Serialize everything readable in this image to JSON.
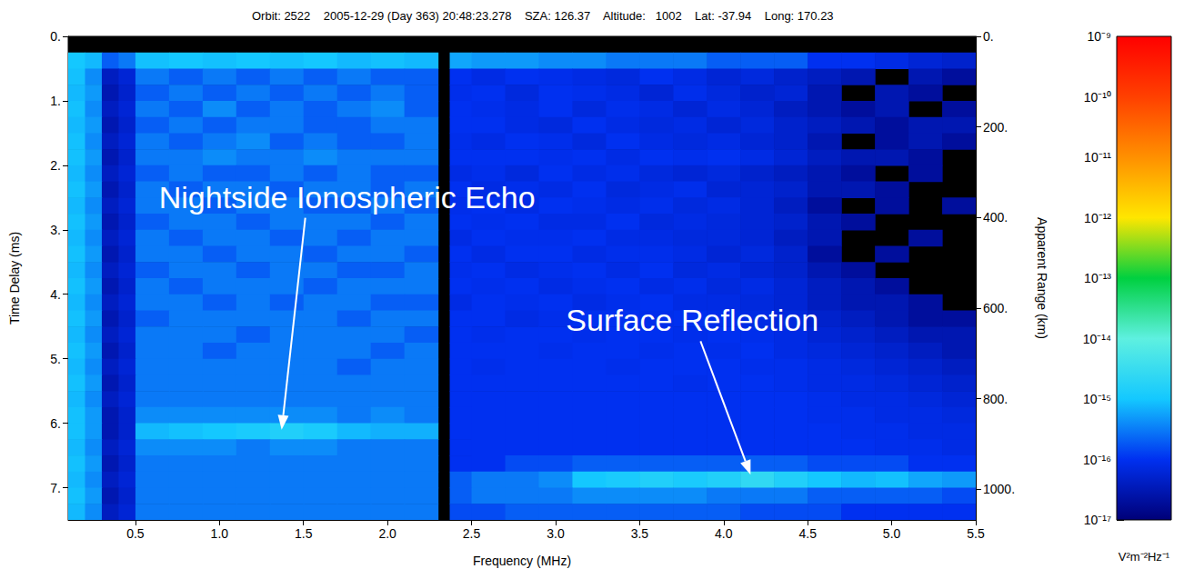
{
  "chart_data": {
    "type": "heatmap",
    "title": "Orbit: 2522    2005-12-29 (Day 363) 20:48:23.278    SZA: 126.37    Altitude:   1002    Lat: -37.94    Long: 170.23",
    "xlabel": "Frequency (MHz)",
    "ylabel": "Time Delay (ms)",
    "y2label": "Apparent Range (km)",
    "xlim": [
      0.1,
      5.5
    ],
    "xticks": [
      0.5,
      {
        "value": 1,
        "label": "1.0"
      },
      1.5,
      {
        "value": 2,
        "label": "2.0"
      },
      2.5,
      {
        "value": 3,
        "label": "3.0"
      },
      3.5,
      {
        "value": 4,
        "label": "4.0"
      },
      4.5,
      {
        "value": 5,
        "label": "5.0"
      },
      5.5
    ],
    "ylim": [
      7.5,
      0
    ],
    "yticks": [
      {
        "value": 0,
        "label": "0."
      },
      {
        "value": 1,
        "label": "1."
      },
      {
        "value": 2,
        "label": "2."
      },
      {
        "value": 3,
        "label": "3."
      },
      {
        "value": 4,
        "label": "4."
      },
      {
        "value": 5,
        "label": "5."
      },
      {
        "value": 6,
        "label": "6."
      },
      {
        "value": 7,
        "label": "7."
      }
    ],
    "y2lim": [
      1068,
      0
    ],
    "y2ticks": [
      {
        "value": 0,
        "label": "0."
      },
      {
        "value": 200,
        "label": "200."
      },
      {
        "value": 400,
        "label": "400."
      },
      {
        "value": 600,
        "label": "600."
      },
      {
        "value": 800,
        "label": "800."
      },
      {
        "value": 1000,
        "label": "1000."
      }
    ],
    "grid": false,
    "cells": {
      "x_edges": [
        0.1,
        0.2,
        0.3,
        0.4,
        0.5,
        0.7,
        0.9,
        1.1,
        1.3,
        1.5,
        1.7,
        1.9,
        2.1,
        2.3,
        2.37,
        2.5,
        2.7,
        2.9,
        3.1,
        3.3,
        3.5,
        3.7,
        3.9,
        4.1,
        4.3,
        4.5,
        4.7,
        4.9,
        5.1,
        5.3,
        5.5
      ],
      "y_edges": [
        0,
        0.25,
        0.5,
        0.75,
        1,
        1.25,
        1.5,
        1.75,
        2,
        2.25,
        2.5,
        2.75,
        3,
        3.25,
        3.5,
        3.75,
        4,
        4.25,
        4.5,
        4.75,
        5,
        5.25,
        5.5,
        5.75,
        6,
        6.25,
        6.5,
        6.75,
        7,
        7.25,
        7.5
      ],
      "values": [
        [
          null,
          null,
          null,
          null,
          null,
          null,
          null,
          null,
          null,
          null,
          null,
          null,
          null,
          null,
          null,
          null,
          null,
          null,
          null,
          null,
          null,
          null,
          null,
          null,
          null,
          null,
          null,
          null,
          null,
          null
        ],
        [
          1e-15,
          8e-16,
          2e-16,
          3e-16,
          9e-16,
          1e-15,
          9e-16,
          1e-15,
          9e-16,
          1e-15,
          8e-16,
          9e-16,
          8e-16,
          null,
          6e-16,
          5e-16,
          5e-16,
          4e-16,
          4e-16,
          3e-16,
          3e-16,
          3e-16,
          2e-16,
          2e-16,
          2e-16,
          1e-16,
          1e-16,
          8e-17,
          6e-17,
          5e-17
        ],
        [
          9e-16,
          4e-16,
          4e-17,
          6e-17,
          3e-16,
          2e-16,
          3e-16,
          2e-16,
          3e-16,
          2e-16,
          3e-16,
          2e-16,
          2e-16,
          null,
          1e-16,
          8e-17,
          1e-16,
          9e-17,
          8e-17,
          7e-17,
          1e-16,
          8e-17,
          6e-17,
          7e-17,
          5e-17,
          4e-17,
          3e-17,
          null,
          3e-17,
          2e-17
        ],
        [
          8e-16,
          5e-16,
          3e-17,
          5e-17,
          2e-16,
          3e-16,
          2e-16,
          3e-16,
          2e-16,
          3e-16,
          2e-16,
          3e-16,
          2e-16,
          null,
          9e-17,
          1e-16,
          7e-17,
          1e-16,
          9e-17,
          8e-17,
          6e-17,
          9e-17,
          7e-17,
          5e-17,
          6e-17,
          3e-17,
          null,
          3e-17,
          2e-17,
          null
        ],
        [
          9e-16,
          4e-16,
          4e-17,
          6e-17,
          3e-16,
          2e-16,
          4e-16,
          2e-16,
          3e-16,
          2e-16,
          3e-16,
          4e-16,
          2e-16,
          null,
          1e-16,
          9e-17,
          8e-17,
          1e-16,
          7e-17,
          9e-17,
          8e-17,
          6e-17,
          8e-17,
          6e-17,
          4e-17,
          3e-17,
          2e-17,
          3e-17,
          null,
          2e-17
        ],
        [
          8e-16,
          5e-16,
          3e-17,
          5e-17,
          2e-16,
          3e-16,
          2e-16,
          3e-16,
          3e-16,
          2e-16,
          2e-16,
          3e-16,
          3e-16,
          null,
          1e-16,
          1e-16,
          8e-17,
          7e-17,
          1e-16,
          8e-17,
          7e-17,
          8e-17,
          6e-17,
          7e-17,
          5e-17,
          4e-17,
          3e-17,
          2e-17,
          3e-17,
          3e-17
        ],
        [
          9e-16,
          4e-16,
          4e-17,
          6e-17,
          3e-16,
          2e-16,
          3e-16,
          4e-16,
          2e-16,
          3e-16,
          2e-16,
          2e-16,
          3e-16,
          null,
          9e-17,
          8e-17,
          1e-16,
          9e-17,
          7e-17,
          1e-16,
          8e-17,
          7e-17,
          8e-17,
          6e-17,
          5e-17,
          3e-17,
          null,
          2e-17,
          3e-17,
          2e-17
        ],
        [
          9e-16,
          5e-16,
          3e-17,
          5e-17,
          3e-16,
          3e-16,
          4e-16,
          3e-16,
          3e-16,
          4e-16,
          3e-16,
          3e-16,
          3e-16,
          null,
          1e-16,
          1e-16,
          1e-16,
          9e-17,
          1e-16,
          8e-17,
          1e-16,
          9e-17,
          1e-16,
          8e-17,
          6e-17,
          4e-17,
          3e-17,
          3e-17,
          2e-17,
          null
        ],
        [
          8e-16,
          4e-16,
          4e-17,
          6e-17,
          2e-16,
          3e-16,
          2e-16,
          2e-16,
          3e-16,
          2e-16,
          3e-16,
          2e-16,
          2e-16,
          null,
          8e-17,
          9e-17,
          7e-17,
          1e-16,
          8e-17,
          9e-17,
          7e-17,
          6e-17,
          7e-17,
          5e-17,
          4e-17,
          3e-17,
          2e-17,
          null,
          2e-17,
          null
        ],
        [
          9e-16,
          5e-16,
          3e-17,
          5e-17,
          3e-16,
          2e-16,
          3e-16,
          3e-16,
          2e-16,
          3e-16,
          3e-16,
          2e-16,
          3e-16,
          null,
          1e-16,
          8e-17,
          9e-17,
          8e-17,
          1e-16,
          7e-17,
          8e-17,
          9e-17,
          6e-17,
          6e-17,
          5e-17,
          3e-17,
          3e-17,
          2e-17,
          null,
          null
        ],
        [
          8e-16,
          4e-16,
          4e-17,
          6e-17,
          3e-16,
          3e-16,
          2e-16,
          3e-16,
          3e-16,
          2e-16,
          2e-16,
          3e-16,
          2e-16,
          null,
          9e-17,
          1e-16,
          8e-17,
          1e-16,
          9e-17,
          8e-17,
          9e-17,
          7e-17,
          8e-17,
          6e-17,
          4e-17,
          2e-17,
          null,
          2e-17,
          null,
          2e-17
        ],
        [
          9e-16,
          5e-16,
          3e-17,
          5e-17,
          2e-16,
          3e-16,
          3e-16,
          2e-16,
          3e-16,
          3e-16,
          3e-16,
          2e-16,
          3e-16,
          null,
          1e-16,
          9e-17,
          1e-16,
          8e-17,
          8e-17,
          1e-16,
          7e-17,
          8e-17,
          7e-17,
          6e-17,
          5e-17,
          3e-17,
          2e-17,
          null,
          null,
          null
        ],
        [
          8e-16,
          4e-16,
          4e-17,
          6e-17,
          3e-16,
          2e-16,
          3e-16,
          3e-16,
          2e-16,
          3e-16,
          2e-16,
          3e-16,
          3e-16,
          null,
          8e-17,
          1e-16,
          9e-17,
          9e-17,
          1e-16,
          8e-17,
          8e-17,
          7e-17,
          7e-17,
          6e-17,
          4e-17,
          3e-17,
          null,
          null,
          2e-17,
          null
        ],
        [
          9e-16,
          5e-16,
          3e-17,
          5e-17,
          3e-16,
          3e-16,
          2e-16,
          3e-16,
          3e-16,
          2e-16,
          3e-16,
          3e-16,
          2e-16,
          null,
          1e-16,
          8e-17,
          1e-16,
          1e-16,
          8e-17,
          9e-17,
          9e-17,
          8e-17,
          6e-17,
          7e-17,
          5e-17,
          2e-17,
          null,
          2e-17,
          null,
          null
        ],
        [
          8e-16,
          4e-16,
          4e-17,
          6e-17,
          2e-16,
          3e-16,
          3e-16,
          2e-16,
          3e-16,
          3e-16,
          2e-16,
          2e-16,
          3e-16,
          null,
          9e-17,
          1e-16,
          8e-17,
          9e-17,
          1e-16,
          8e-17,
          1e-16,
          7e-17,
          8e-17,
          6e-17,
          5e-17,
          3e-17,
          2e-17,
          null,
          null,
          null
        ],
        [
          9e-16,
          5e-16,
          3e-17,
          5e-17,
          3e-16,
          2e-16,
          3e-16,
          3e-16,
          3e-16,
          2e-16,
          3e-16,
          3e-16,
          3e-16,
          null,
          1e-16,
          9e-17,
          1e-16,
          8e-17,
          9e-17,
          1e-16,
          8e-17,
          9e-17,
          7e-17,
          8e-17,
          6e-17,
          4e-17,
          3e-17,
          2e-17,
          null,
          null
        ],
        [
          8e-16,
          4e-16,
          4e-17,
          6e-17,
          3e-16,
          3e-16,
          2e-16,
          3e-16,
          2e-16,
          3e-16,
          3e-16,
          2e-16,
          2e-16,
          null,
          8e-17,
          1e-16,
          9e-17,
          1e-16,
          8e-17,
          9e-17,
          1e-16,
          8e-17,
          8e-17,
          7e-17,
          6e-17,
          4e-17,
          3e-17,
          3e-17,
          2e-17,
          null
        ],
        [
          9e-16,
          5e-16,
          3e-17,
          5e-17,
          2e-16,
          3e-16,
          3e-16,
          3e-16,
          3e-16,
          3e-16,
          2e-16,
          3e-16,
          3e-16,
          null,
          1e-16,
          1e-16,
          8e-17,
          9e-17,
          1e-16,
          1e-16,
          9e-17,
          1e-16,
          9e-17,
          8e-17,
          7e-17,
          5e-17,
          4e-17,
          3e-17,
          2e-17,
          2e-17
        ],
        [
          8e-16,
          4e-16,
          4e-17,
          6e-17,
          3e-16,
          3e-16,
          3e-16,
          2e-16,
          3e-16,
          3e-16,
          3e-16,
          3e-16,
          2e-16,
          null,
          1e-16,
          9e-17,
          1e-16,
          1e-16,
          9e-17,
          1e-16,
          1e-16,
          9e-17,
          1e-16,
          9e-17,
          8e-17,
          6e-17,
          5e-17,
          4e-17,
          3e-17,
          3e-17
        ],
        [
          9e-16,
          5e-16,
          3e-17,
          5e-17,
          3e-16,
          3e-16,
          2e-16,
          3e-16,
          3e-16,
          3e-16,
          3e-16,
          2e-16,
          3e-16,
          null,
          1e-16,
          1e-16,
          1e-16,
          9e-17,
          1e-16,
          1e-16,
          9e-17,
          1e-16,
          9e-17,
          1e-16,
          8e-17,
          7e-17,
          6e-17,
          5e-17,
          4e-17,
          3e-17
        ],
        [
          8e-16,
          4e-16,
          4e-17,
          6e-17,
          3e-16,
          3e-16,
          3e-16,
          3e-16,
          3e-16,
          3e-16,
          2e-16,
          3e-16,
          3e-16,
          null,
          1e-16,
          9e-17,
          1e-16,
          1e-16,
          1e-16,
          9e-17,
          1e-16,
          1e-16,
          1e-16,
          9e-17,
          9e-17,
          8e-17,
          7e-17,
          6e-17,
          5e-17,
          4e-17
        ],
        [
          9e-16,
          5e-16,
          3e-17,
          5e-17,
          3e-16,
          3e-16,
          3e-16,
          3e-16,
          3e-16,
          3e-16,
          3e-16,
          3e-16,
          3e-16,
          null,
          1e-16,
          1e-16,
          1e-16,
          1e-16,
          1e-16,
          1e-16,
          1e-16,
          9e-17,
          1e-16,
          1e-16,
          9e-17,
          8e-17,
          8e-17,
          7e-17,
          6e-17,
          5e-17
        ],
        [
          8e-16,
          4e-16,
          4e-17,
          6e-17,
          3e-16,
          3e-16,
          3e-16,
          3e-16,
          3e-16,
          3e-16,
          3e-16,
          3e-16,
          3e-16,
          null,
          1e-16,
          1e-16,
          1e-16,
          1e-16,
          1e-16,
          1e-16,
          1e-16,
          1e-16,
          1e-16,
          1e-16,
          1e-16,
          9e-17,
          8e-17,
          8e-17,
          7e-17,
          6e-17
        ],
        [
          9e-16,
          5e-16,
          3e-17,
          5e-17,
          4e-16,
          4e-16,
          4e-16,
          4e-16,
          4e-16,
          4e-16,
          3e-16,
          4e-16,
          3e-16,
          null,
          1e-16,
          1e-16,
          1e-16,
          1e-16,
          1e-16,
          1e-16,
          1e-16,
          1e-16,
          1e-16,
          1e-16,
          1e-16,
          9e-17,
          9e-17,
          8e-17,
          8e-17,
          7e-17
        ],
        [
          9e-16,
          5e-16,
          3e-17,
          5e-17,
          8e-16,
          9e-16,
          1e-15,
          1.2e-15,
          1.5e-15,
          1.2e-15,
          8e-16,
          7e-16,
          7e-16,
          null,
          1e-16,
          1e-16,
          1e-16,
          1e-16,
          1e-16,
          1e-16,
          1e-16,
          1e-16,
          1e-16,
          1e-16,
          1e-16,
          1e-16,
          9e-17,
          9e-17,
          8e-17,
          8e-17
        ],
        [
          8e-16,
          4e-16,
          4e-17,
          6e-17,
          4e-16,
          4e-16,
          4e-16,
          3e-16,
          4e-16,
          4e-16,
          3e-16,
          3e-16,
          3e-16,
          null,
          1e-16,
          1e-16,
          1e-16,
          1e-16,
          1e-16,
          1e-16,
          1e-16,
          1e-16,
          1e-16,
          1e-16,
          1e-16,
          1e-16,
          1e-16,
          9e-17,
          9e-17,
          8e-17
        ],
        [
          9e-16,
          5e-16,
          3e-17,
          5e-17,
          3e-16,
          3e-16,
          3e-16,
          3e-16,
          3e-16,
          3e-16,
          3e-16,
          3e-16,
          3e-16,
          null,
          1e-16,
          1e-16,
          1.5e-16,
          1.5e-16,
          2e-16,
          2e-16,
          2e-16,
          2e-16,
          2e-16,
          2e-16,
          2e-16,
          1.5e-16,
          1.5e-16,
          1.5e-16,
          1e-16,
          1e-16
        ],
        [
          8e-16,
          4e-16,
          4e-17,
          6e-17,
          3e-16,
          3e-16,
          3e-16,
          3e-16,
          3e-16,
          3e-16,
          3e-16,
          3e-16,
          3e-16,
          null,
          2e-16,
          3e-16,
          3e-16,
          4e-16,
          1e-15,
          1.2e-15,
          1.5e-15,
          1.2e-15,
          1.5e-15,
          2.5e-15,
          1.5e-15,
          1e-15,
          8e-16,
          9e-16,
          6e-16,
          5e-16
        ],
        [
          9e-16,
          5e-16,
          3e-17,
          5e-17,
          3e-16,
          3e-16,
          3e-16,
          3e-16,
          3e-16,
          3e-16,
          3e-16,
          3e-16,
          3e-16,
          null,
          2e-16,
          3e-16,
          3e-16,
          3e-16,
          4e-16,
          4e-16,
          4e-16,
          4e-16,
          3e-16,
          3e-16,
          3e-16,
          2e-16,
          2e-16,
          2e-16,
          2e-16,
          1.5e-16
        ],
        [
          8e-16,
          4e-16,
          4e-17,
          6e-17,
          3e-16,
          3e-16,
          3e-16,
          3e-16,
          3e-16,
          3e-16,
          3e-16,
          3e-16,
          3e-16,
          null,
          1.5e-16,
          1.5e-16,
          2e-16,
          2e-16,
          2e-16,
          2e-16,
          2e-16,
          2e-16,
          2e-16,
          1.5e-16,
          1.5e-16,
          1.5e-16,
          1e-16,
          1e-16,
          1e-16,
          1e-16
        ]
      ]
    },
    "colorbar": {
      "label": "V²m⁻²Hz⁻¹",
      "lim": [
        1e-17,
        1e-09
      ],
      "ticks": [
        {
          "value": 1e-17,
          "label": "10⁻¹⁷"
        },
        {
          "value": 1e-16,
          "label": "10⁻¹⁶"
        },
        {
          "value": 1e-15,
          "label": "10⁻¹⁵"
        },
        {
          "value": 1e-14,
          "label": "10⁻¹⁴"
        },
        {
          "value": 1e-13,
          "label": "10⁻¹³"
        },
        {
          "value": 1e-12,
          "label": "10⁻¹²"
        },
        {
          "value": 1e-11,
          "label": "10⁻¹¹"
        },
        {
          "value": 1e-10,
          "label": "10⁻¹⁰"
        },
        {
          "value": 1e-09,
          "label": "10⁻⁹"
        }
      ]
    },
    "annotations": [
      {
        "text": "Nightside Ionospheric Echo",
        "x": 1.37,
        "y": 6.1
      },
      {
        "text": "Surface Reflection",
        "x": 4.16,
        "y": 6.8
      }
    ]
  }
}
